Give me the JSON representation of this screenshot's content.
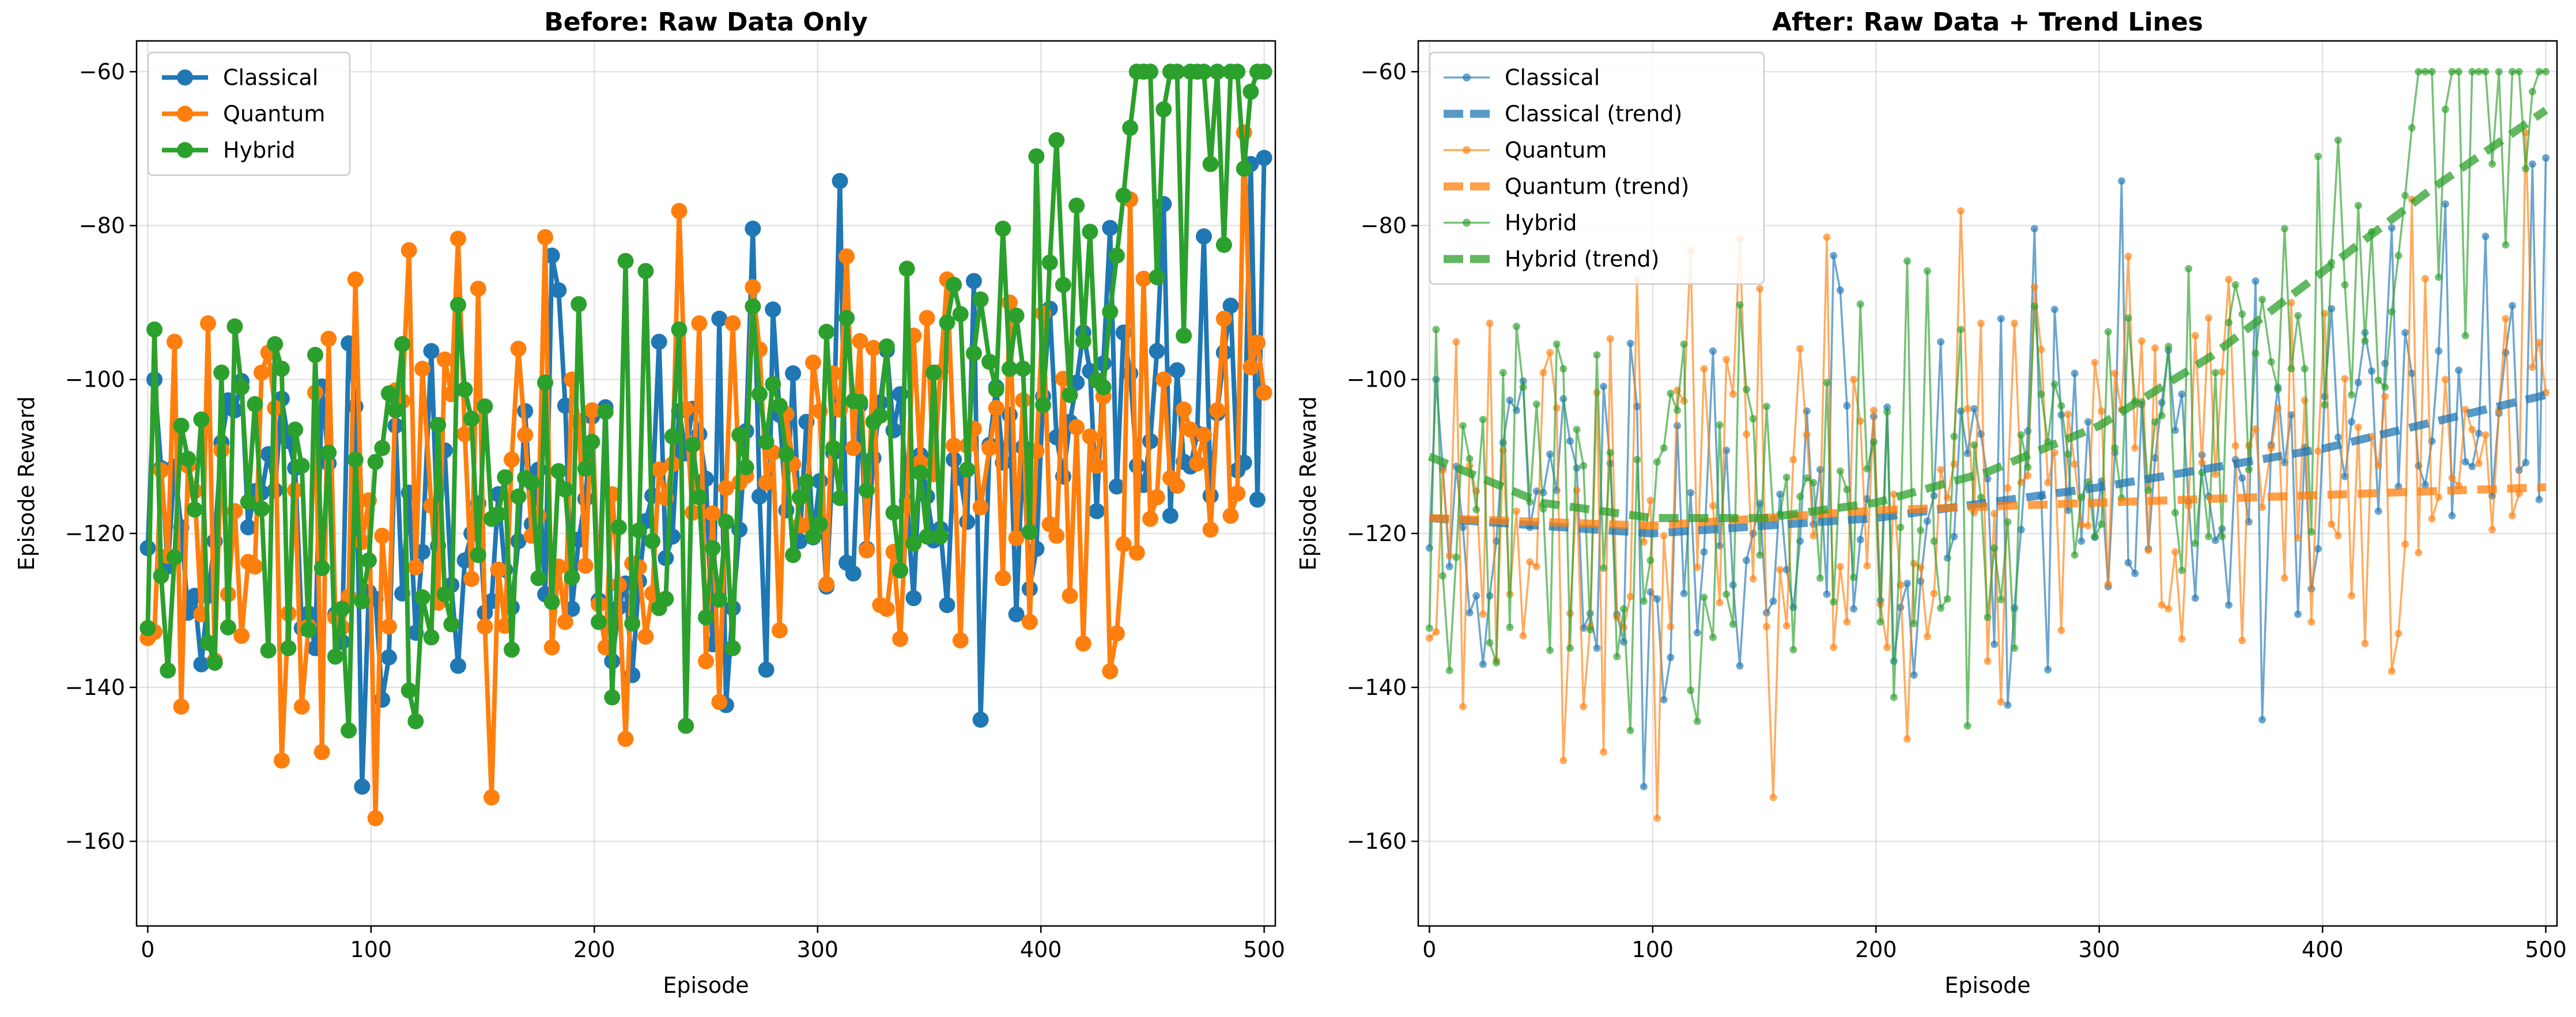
{
  "chart_data": [
    {
      "type": "line",
      "title": "Before: Raw Data Only",
      "xlabel": "Episode",
      "ylabel": "Episode Reward",
      "xlim": [
        -5,
        505
      ],
      "ylim": [
        -171,
        -56
      ],
      "xticks": [
        0,
        100,
        200,
        300,
        400,
        500
      ],
      "yticks": [
        -160,
        -140,
        -120,
        -100,
        -80,
        -60
      ],
      "grid": true,
      "legend_position": "upper-left",
      "generated_series": [
        {
          "name": "Classical",
          "color": "#1f77b4",
          "seed": 11,
          "generator": "classical"
        },
        {
          "name": "Quantum",
          "color": "#ff7f0e",
          "seed": 23,
          "generator": "quantum"
        },
        {
          "name": "Hybrid",
          "color": "#2ca02c",
          "seed": 37,
          "generator": "hybrid"
        }
      ],
      "legend": [
        "Classical",
        "Quantum",
        "Hybrid"
      ],
      "x_range": [
        0,
        500
      ],
      "num_points": 167
    },
    {
      "type": "line",
      "title": "After: Raw Data + Trend Lines",
      "xlabel": "Episode",
      "ylabel": "Episode Reward",
      "xlim": [
        -5,
        505
      ],
      "ylim": [
        -171,
        -56
      ],
      "xticks": [
        0,
        100,
        200,
        300,
        400,
        500
      ],
      "yticks": [
        -160,
        -140,
        -120,
        -100,
        -80,
        -60
      ],
      "grid": true,
      "legend_position": "upper-left",
      "generated_series": [
        {
          "name": "Classical",
          "color": "#1f77b4",
          "seed": 11,
          "generator": "classical"
        },
        {
          "name": "Quantum",
          "color": "#ff7f0e",
          "seed": 23,
          "generator": "quantum"
        },
        {
          "name": "Hybrid",
          "color": "#2ca02c",
          "seed": 37,
          "generator": "hybrid"
        }
      ],
      "trend_series": [
        {
          "name": "Classical (trend)",
          "color": "#1f77b4",
          "x": [
            0,
            100,
            200,
            300,
            400,
            500
          ],
          "y": [
            -118,
            -120,
            -118,
            -114,
            -109,
            -102
          ]
        },
        {
          "name": "Quantum (trend)",
          "color": "#ff7f0e",
          "x": [
            0,
            100,
            200,
            300,
            400,
            500
          ],
          "y": [
            -118,
            -119,
            -117,
            -116,
            -115,
            -114
          ]
        },
        {
          "name": "Hybrid (trend)",
          "color": "#2ca02c",
          "x": [
            0,
            50,
            100,
            150,
            200,
            250,
            300,
            350,
            400,
            450,
            500
          ],
          "y": [
            -110,
            -116,
            -118,
            -118,
            -116,
            -112,
            -106,
            -97,
            -86,
            -75,
            -65
          ]
        }
      ],
      "legend": [
        "Classical",
        "Classical (trend)",
        "Quantum",
        "Quantum (trend)",
        "Hybrid",
        "Hybrid (trend)"
      ],
      "x_range": [
        0,
        500
      ],
      "num_points": 167
    }
  ]
}
